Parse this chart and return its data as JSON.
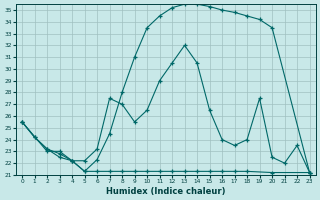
{
  "xlabel": "Humidex (Indice chaleur)",
  "bg_color": "#c8e8e8",
  "grid_color": "#a0c0c0",
  "line_color": "#006868",
  "xlim": [
    -0.5,
    23.5
  ],
  "ylim": [
    21.0,
    35.5
  ],
  "yticks": [
    21,
    22,
    23,
    24,
    25,
    26,
    27,
    28,
    29,
    30,
    31,
    32,
    33,
    34,
    35
  ],
  "xticks": [
    0,
    1,
    2,
    3,
    4,
    5,
    6,
    7,
    8,
    9,
    10,
    11,
    12,
    13,
    14,
    15,
    16,
    17,
    18,
    19,
    20,
    21,
    22,
    23
  ],
  "line1_x": [
    0,
    1,
    2,
    3,
    4,
    5,
    6,
    7,
    8,
    9,
    10,
    11,
    12,
    13,
    14,
    15,
    16,
    17,
    18,
    19,
    20,
    23
  ],
  "line1_y": [
    25.5,
    24.2,
    23.2,
    22.5,
    22.2,
    21.3,
    22.3,
    24.5,
    28.0,
    31.0,
    33.5,
    34.5,
    35.2,
    35.5,
    35.5,
    35.3,
    35.0,
    34.8,
    34.5,
    34.2,
    33.5,
    21.2
  ],
  "line2_x": [
    0,
    1,
    2,
    3,
    4,
    5,
    6,
    7,
    8,
    9,
    10,
    11,
    12,
    13,
    14,
    15,
    16,
    17,
    18,
    19,
    20,
    21,
    22,
    23
  ],
  "line2_y": [
    25.5,
    24.2,
    23.2,
    22.8,
    22.2,
    22.2,
    23.2,
    27.5,
    27.0,
    25.5,
    26.5,
    29.0,
    30.5,
    32.0,
    30.5,
    26.5,
    24.0,
    23.5,
    24.0,
    27.5,
    22.5,
    22.0,
    23.5,
    21.2
  ],
  "line3_x": [
    0,
    2,
    3,
    4,
    5,
    6,
    7,
    8,
    9,
    10,
    11,
    12,
    13,
    14,
    15,
    16,
    17,
    18,
    20,
    23
  ],
  "line3_y": [
    25.5,
    23.0,
    23.0,
    22.2,
    21.3,
    21.3,
    21.3,
    21.3,
    21.3,
    21.3,
    21.3,
    21.3,
    21.3,
    21.3,
    21.3,
    21.3,
    21.3,
    21.3,
    21.2,
    21.2
  ]
}
